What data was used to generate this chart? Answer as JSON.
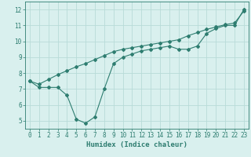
{
  "line1_x": [
    0,
    1,
    2,
    3,
    4,
    5,
    6,
    7,
    8,
    9,
    10,
    11,
    12,
    13,
    14,
    15,
    16,
    17,
    18,
    19,
    20,
    21,
    22,
    23
  ],
  "line1_y": [
    7.5,
    7.1,
    7.1,
    7.1,
    6.6,
    5.1,
    4.85,
    5.25,
    7.0,
    8.6,
    9.0,
    9.2,
    9.4,
    9.5,
    9.6,
    9.7,
    9.5,
    9.5,
    9.7,
    10.5,
    10.8,
    11.0,
    11.0,
    12.0
  ],
  "line2_x": [
    0,
    1,
    2,
    3,
    4,
    5,
    6,
    7,
    8,
    9,
    10,
    11,
    12,
    13,
    14,
    15,
    16,
    17,
    18,
    19,
    20,
    21,
    22,
    23
  ],
  "line2_y": [
    7.5,
    7.3,
    7.6,
    7.9,
    8.15,
    8.4,
    8.6,
    8.85,
    9.1,
    9.35,
    9.5,
    9.6,
    9.7,
    9.8,
    9.9,
    10.0,
    10.1,
    10.35,
    10.55,
    10.75,
    10.9,
    11.05,
    11.15,
    11.9
  ],
  "line_color": "#2e7d70",
  "bg_color": "#d9f0ee",
  "grid_color": "#b8dbd8",
  "xlabel": "Humidex (Indice chaleur)",
  "xlim": [
    -0.5,
    23.5
  ],
  "ylim": [
    4.5,
    12.5
  ],
  "xticks": [
    0,
    1,
    2,
    3,
    4,
    5,
    6,
    7,
    8,
    9,
    10,
    11,
    12,
    13,
    14,
    15,
    16,
    17,
    18,
    19,
    20,
    21,
    22,
    23
  ],
  "yticks": [
    5,
    6,
    7,
    8,
    9,
    10,
    11,
    12
  ],
  "xlabel_fontsize": 6.5,
  "tick_fontsize": 5.5
}
